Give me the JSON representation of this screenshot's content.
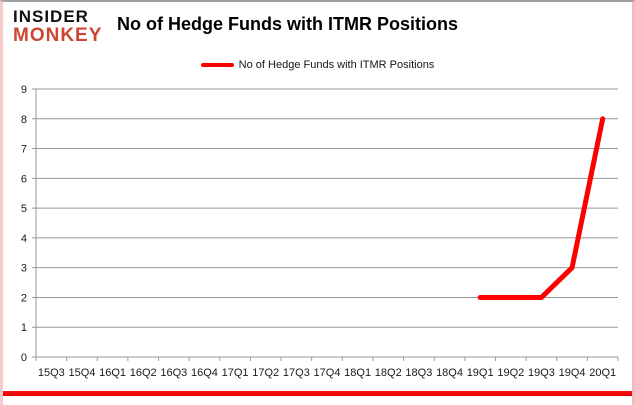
{
  "logo": {
    "line1": "INSIDER",
    "line2": "MONKEY",
    "accent_color": "#cc4733"
  },
  "header": {
    "title": "No of Hedge Funds with ITMR Positions"
  },
  "legend": {
    "label": "No of Hedge Funds with ITMR Positions",
    "line_color": "#fe0000"
  },
  "colors": {
    "line_red": "#fe0000",
    "gridline_gray": "#999999",
    "axis_text": "#1a1a1a",
    "logo_red": "#cc4733",
    "bottom_bar_red": "#ee0000"
  },
  "chart_data": {
    "type": "line",
    "title": "No of Hedge Funds with ITMR Positions",
    "categories": [
      "15Q3",
      "15Q4",
      "16Q1",
      "16Q2",
      "16Q3",
      "16Q4",
      "17Q1",
      "17Q2",
      "17Q3",
      "17Q4",
      "18Q1",
      "18Q2",
      "18Q3",
      "18Q4",
      "19Q1",
      "19Q2",
      "19Q3",
      "19Q4",
      "20Q1"
    ],
    "series": [
      {
        "name": "No of Hedge Funds with ITMR Positions",
        "color": "#fe0000",
        "values": [
          null,
          null,
          null,
          null,
          null,
          null,
          null,
          null,
          null,
          null,
          null,
          null,
          null,
          null,
          2,
          2,
          2,
          3,
          8
        ]
      }
    ],
    "xlabel": "",
    "ylabel": "",
    "ylim": [
      0,
      9
    ],
    "ytick_step": 1,
    "grid": "horizontal",
    "legend_position": "top"
  }
}
